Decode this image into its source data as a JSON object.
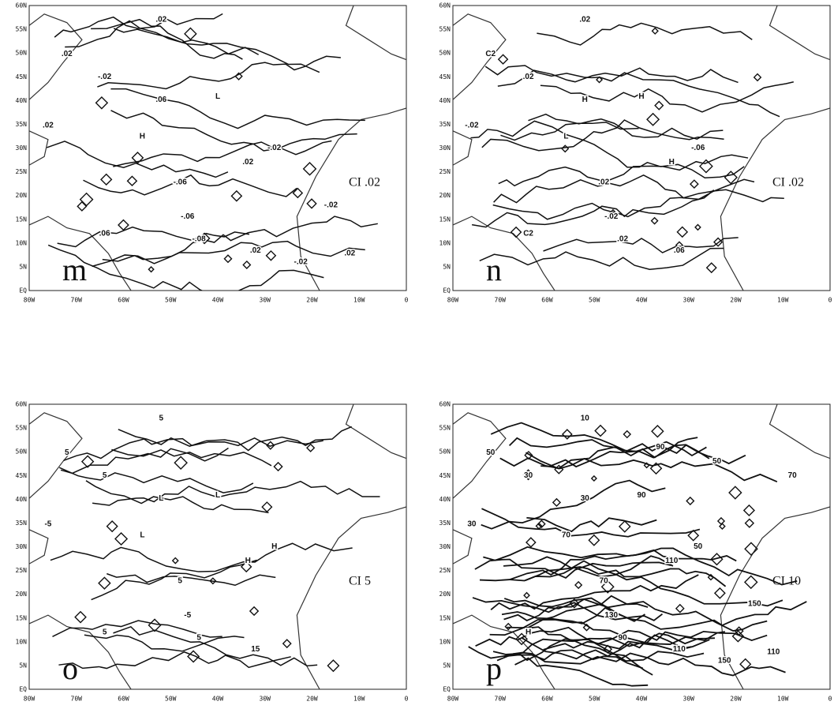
{
  "lat_labels": [
    "60N",
    "55N",
    "50N",
    "45N",
    "40N",
    "35N",
    "30N",
    "25N",
    "20N",
    "15N",
    "10N",
    "5N",
    "EQ"
  ],
  "lon_labels": [
    "80W",
    "70W",
    "60W",
    "50W",
    "40W",
    "30W",
    "20W",
    "10W",
    "0"
  ],
  "panels": [
    {
      "letter": "m",
      "ci": "CI .02",
      "contour_labels": [
        ".02",
        ".02",
        "-.02",
        ".02",
        ".06",
        "H",
        "L",
        ".02",
        "-.02",
        "-.06",
        ".06",
        "-.06",
        "-.08",
        ".02",
        "-.02",
        ".02",
        "-.02"
      ]
    },
    {
      "letter": "n",
      "ci": "CI .02",
      "contour_labels": [
        ".02",
        "C2",
        ".02",
        "-.02",
        "H",
        "L",
        "H",
        "H",
        "-.06",
        ".02",
        "C2",
        "-.02",
        ".02",
        ".06"
      ]
    },
    {
      "letter": "o",
      "ci": "CI 5",
      "contour_labels": [
        "5",
        "5",
        "5",
        "-5",
        "L",
        "L",
        "L",
        "H",
        "H",
        "5",
        "5",
        "-5",
        "5",
        "15"
      ]
    },
    {
      "letter": "p",
      "ci": "CI 10",
      "contour_labels": [
        "10",
        "50",
        "30",
        "30",
        "30",
        "70",
        "90",
        "110",
        "50",
        "70",
        "H",
        "130",
        "90",
        "110",
        "150",
        "110",
        "150",
        "90",
        "50",
        "70"
      ]
    }
  ]
}
